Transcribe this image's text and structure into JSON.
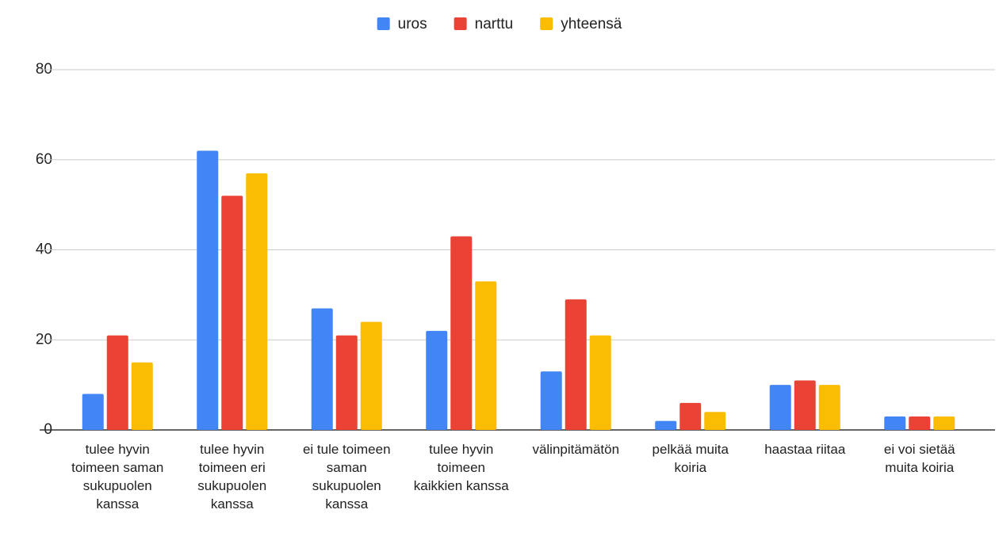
{
  "chart_data": {
    "type": "bar",
    "categories": [
      "tulee hyvin toimeen saman sukupuolen kanssa",
      "tulee hyvin toimeen eri sukupuolen kanssa",
      "ei tule toimeen saman sukupuolen kanssa",
      "tulee hyvin toimeen kaikkien kanssa",
      "välinpitämätön",
      "pelkää muita koiria",
      "haastaa riitaa",
      "ei voi sietää muita koiria"
    ],
    "series": [
      {
        "name": "uros",
        "color": "#4285f4",
        "values": [
          8,
          62,
          27,
          22,
          13,
          2,
          10,
          3
        ]
      },
      {
        "name": "narttu",
        "color": "#ea4335",
        "values": [
          21,
          52,
          21,
          43,
          29,
          6,
          11,
          3
        ]
      },
      {
        "name": "yhteensä",
        "color": "#fbbc04",
        "values": [
          15,
          57,
          24,
          33,
          21,
          4,
          10,
          3
        ]
      }
    ],
    "ylim": [
      0,
      80
    ],
    "yticks": [
      0,
      20,
      40,
      60,
      80
    ],
    "grid": true,
    "legend": "top"
  }
}
